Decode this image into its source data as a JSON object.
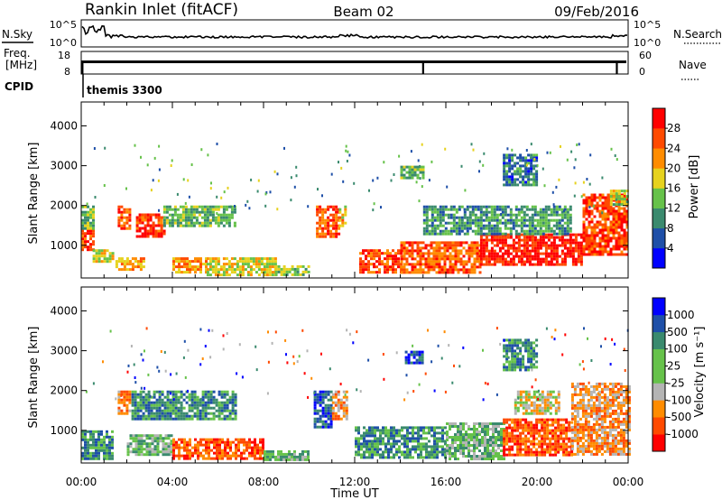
{
  "header": {
    "station": "Rankin Inlet (fitACF)",
    "beam": "Beam 02",
    "date": "09/Feb/2016"
  },
  "summary_panels": {
    "nsky_label": "N.Sky",
    "nsearch_label": "N.Search",
    "noise_tick_top": "10^5",
    "noise_tick_bottom": "10^0",
    "freq_label_line1": "Freq.",
    "freq_label_line2": "[MHz]",
    "freq_tick_top": "18",
    "freq_tick_bottom": "8",
    "nave_label": "Nave",
    "nave_tick_top": "60",
    "nave_tick_bottom": "0",
    "cpid_label": "CPID",
    "cpid_value": "themis 3300"
  },
  "legend_colors": {
    "power": [
      "#0000ff",
      "#1e4fa8",
      "#3a8a6e",
      "#66c24a",
      "#e6d21e",
      "#ff8c00",
      "#ff4a00",
      "#ff0000"
    ],
    "velocity": [
      "#ff0000",
      "#ff4a00",
      "#ff8c00",
      "#b4b4b4",
      "#66c24a",
      "#3a8a6e",
      "#1e4fa8",
      "#0000ff"
    ]
  },
  "chart_data": [
    {
      "type": "heatmap",
      "name": "power",
      "ylabel": "Slant Range [km]",
      "xlabel": "",
      "yticks": [
        "1000",
        "2000",
        "3000",
        "4000"
      ],
      "xticks": [
        "00:00",
        "04:00",
        "08:00",
        "12:00",
        "16:00",
        "20:00",
        "00:00"
      ],
      "xlim_hours": [
        0,
        24
      ],
      "ylim_km": [
        180,
        4600
      ],
      "colorbar_label": "Power [dB]",
      "colorbar_ticks": [
        "4",
        "8",
        "12",
        "16",
        "20",
        "24",
        "28"
      ],
      "colorbar_range": [
        0,
        32
      ],
      "regions": [
        {
          "t0": 0.0,
          "t1": 0.5,
          "r0": 900,
          "r1": 1400,
          "v": 27
        },
        {
          "t0": 0.0,
          "t1": 0.5,
          "r0": 1400,
          "r1": 2000,
          "v": 14
        },
        {
          "t0": 0.5,
          "t1": 1.4,
          "r0": 600,
          "r1": 900,
          "v": 17
        },
        {
          "t0": 1.5,
          "t1": 2.8,
          "r0": 400,
          "r1": 700,
          "v": 21
        },
        {
          "t0": 1.6,
          "t1": 2.1,
          "r0": 1400,
          "r1": 2000,
          "v": 27
        },
        {
          "t0": 2.4,
          "t1": 3.6,
          "r0": 1200,
          "r1": 1800,
          "v": 28
        },
        {
          "t0": 3.6,
          "t1": 6.8,
          "r0": 1500,
          "r1": 2000,
          "v": 13
        },
        {
          "t0": 4.0,
          "t1": 5.5,
          "r0": 350,
          "r1": 700,
          "v": 23
        },
        {
          "t0": 5.5,
          "t1": 8.5,
          "r0": 280,
          "r1": 700,
          "v": 18
        },
        {
          "t0": 8.5,
          "t1": 10.0,
          "r0": 250,
          "r1": 500,
          "v": 15
        },
        {
          "t0": 10.3,
          "t1": 11.3,
          "r0": 1200,
          "r1": 2000,
          "v": 26
        },
        {
          "t0": 11.3,
          "t1": 11.6,
          "r0": 1500,
          "r1": 2000,
          "v": 20
        },
        {
          "t0": 12.2,
          "t1": 14.0,
          "r0": 300,
          "r1": 900,
          "v": 27
        },
        {
          "t0": 14.0,
          "t1": 17.5,
          "r0": 350,
          "r1": 1100,
          "v": 25
        },
        {
          "t0": 17.5,
          "t1": 22.0,
          "r0": 500,
          "r1": 1300,
          "v": 29
        },
        {
          "t0": 15.0,
          "t1": 21.5,
          "r0": 1300,
          "r1": 2000,
          "v": 11
        },
        {
          "t0": 14.0,
          "t1": 15.0,
          "r0": 2700,
          "r1": 3000,
          "v": 13
        },
        {
          "t0": 18.5,
          "t1": 20.0,
          "r0": 2500,
          "r1": 3300,
          "v": 8
        },
        {
          "t0": 22.0,
          "t1": 24.0,
          "r0": 800,
          "r1": 2300,
          "v": 27
        },
        {
          "t0": 23.2,
          "t1": 24.0,
          "r0": 2000,
          "r1": 2400,
          "v": 16
        }
      ]
    },
    {
      "type": "heatmap",
      "name": "velocity",
      "ylabel": "Slant Range [km]",
      "xlabel": "Time UT",
      "yticks": [
        "1000",
        "2000",
        "3000",
        "4000"
      ],
      "xticks": [
        "00:00",
        "04:00",
        "08:00",
        "12:00",
        "16:00",
        "20:00",
        "00:00"
      ],
      "xlim_hours": [
        0,
        24
      ],
      "ylim_km": [
        180,
        4600
      ],
      "colorbar_label": "Velocity [m s⁻¹]",
      "colorbar_ticks": [
        "1000",
        "500",
        "100",
        "25",
        "-25",
        "-100",
        "-500",
        "-1000"
      ],
      "regions": [
        {
          "t0": 0.0,
          "t1": 1.4,
          "r0": 300,
          "r1": 1000,
          "v": 5
        },
        {
          "t0": 1.6,
          "t1": 2.1,
          "r0": 1400,
          "r1": 2000,
          "v": 2
        },
        {
          "t0": 2.0,
          "t1": 4.0,
          "r0": 400,
          "r1": 900,
          "v": 4
        },
        {
          "t0": 2.2,
          "t1": 6.8,
          "r0": 1300,
          "r1": 2000,
          "v": 5
        },
        {
          "t0": 4.0,
          "t1": 8.0,
          "r0": 300,
          "r1": 800,
          "v": 1
        },
        {
          "t0": 8.0,
          "t1": 10.0,
          "r0": 250,
          "r1": 500,
          "v": 4
        },
        {
          "t0": 10.2,
          "t1": 11.0,
          "r0": 1100,
          "r1": 2000,
          "v": 6
        },
        {
          "t0": 11.0,
          "t1": 11.6,
          "r0": 1300,
          "r1": 2000,
          "v": 2
        },
        {
          "t0": 12.0,
          "t1": 16.0,
          "r0": 300,
          "r1": 1100,
          "v": 5
        },
        {
          "t0": 16.0,
          "t1": 18.5,
          "r0": 300,
          "r1": 1200,
          "v": 4
        },
        {
          "t0": 18.5,
          "t1": 21.5,
          "r0": 400,
          "r1": 1300,
          "v": 1
        },
        {
          "t0": 21.5,
          "t1": 24.0,
          "r0": 400,
          "r1": 2200,
          "v": 2
        },
        {
          "t0": 14.2,
          "t1": 15.0,
          "r0": 2700,
          "r1": 3000,
          "v": 6
        },
        {
          "t0": 18.5,
          "t1": 20.0,
          "r0": 2500,
          "r1": 3300,
          "v": 5
        },
        {
          "t0": 19.0,
          "t1": 21.0,
          "r0": 1400,
          "r1": 2000,
          "v": 3
        }
      ]
    }
  ]
}
